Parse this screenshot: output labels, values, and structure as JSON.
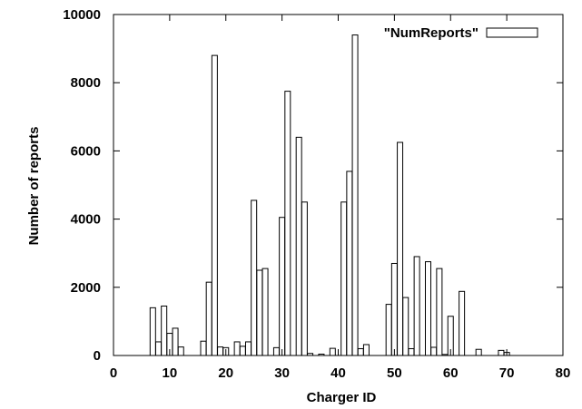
{
  "chart_data": {
    "type": "bar",
    "xlabel": "Charger ID",
    "ylabel": "Number of reports",
    "xlim": [
      0,
      80
    ],
    "ylim": [
      0,
      10000
    ],
    "xticks": [
      0,
      10,
      20,
      30,
      40,
      50,
      60,
      70,
      80
    ],
    "yticks": [
      0,
      2000,
      4000,
      6000,
      8000,
      10000
    ],
    "legend": {
      "label": "\"NumReports\"",
      "position": "top-right"
    },
    "grid": false,
    "series": [
      {
        "name": "\"NumReports\"",
        "x": [
          7,
          8,
          9,
          10,
          11,
          12,
          16,
          17,
          18,
          19,
          20,
          22,
          23,
          24,
          25,
          26,
          27,
          29,
          30,
          31,
          33,
          34,
          35,
          37,
          39,
          41,
          42,
          43,
          44,
          45,
          49,
          50,
          51,
          52,
          53,
          54,
          56,
          57,
          58,
          59,
          60,
          62,
          65,
          69,
          70
        ],
        "values": [
          1400,
          400,
          1450,
          650,
          800,
          250,
          420,
          2150,
          8800,
          250,
          230,
          400,
          270,
          400,
          4550,
          2500,
          2550,
          230,
          4050,
          7750,
          6400,
          4500,
          60,
          40,
          210,
          4500,
          5400,
          9400,
          200,
          320,
          1500,
          2700,
          6250,
          1700,
          200,
          2900,
          2750,
          240,
          2550,
          30,
          1150,
          1880,
          180,
          150,
          90
        ]
      }
    ]
  }
}
